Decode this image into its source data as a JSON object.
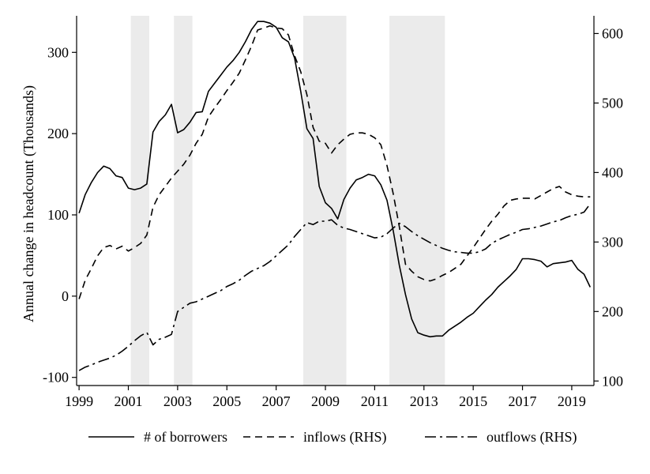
{
  "chart_data": {
    "type": "line",
    "title": "",
    "ylabel": "Annual change in headcount (Thousands)",
    "y2label": "",
    "xlabel": "",
    "xlim": [
      1998.9,
      2019.9
    ],
    "ylim": [
      -110,
      345
    ],
    "y2lim": [
      93.5,
      625.5
    ],
    "x_ticks": [
      1999,
      2001,
      2003,
      2005,
      2007,
      2009,
      2011,
      2013,
      2015,
      2017,
      2019
    ],
    "y_ticks": [
      -100,
      0,
      100,
      200,
      300
    ],
    "y2_ticks": [
      100,
      200,
      300,
      400,
      500,
      600
    ],
    "grid": false,
    "legend_position": "bottom",
    "shaded_periods": [
      [
        2001.1,
        2001.85
      ],
      [
        2002.85,
        2003.6
      ],
      [
        2008.1,
        2009.85
      ],
      [
        2011.6,
        2013.85
      ]
    ],
    "series": [
      {
        "name": "# of borrowers",
        "axis": "left",
        "style": "solid",
        "x": [
          1999,
          1999.25,
          1999.5,
          1999.75,
          2000,
          2000.25,
          2000.5,
          2000.75,
          2001,
          2001.25,
          2001.5,
          2001.75,
          2002,
          2002.25,
          2002.5,
          2002.75,
          2003,
          2003.25,
          2003.5,
          2003.75,
          2004,
          2004.25,
          2004.5,
          2004.75,
          2005,
          2005.25,
          2005.5,
          2005.75,
          2006,
          2006.25,
          2006.5,
          2006.75,
          2007,
          2007.25,
          2007.5,
          2007.75,
          2008,
          2008.25,
          2008.5,
          2008.75,
          2009,
          2009.25,
          2009.5,
          2009.75,
          2010,
          2010.25,
          2010.5,
          2010.75,
          2011,
          2011.25,
          2011.5,
          2011.75,
          2012,
          2012.25,
          2012.5,
          2012.75,
          2013,
          2013.25,
          2013.5,
          2013.75,
          2014,
          2014.25,
          2014.5,
          2014.75,
          2015,
          2015.25,
          2015.5,
          2015.75,
          2016,
          2016.25,
          2016.5,
          2016.75,
          2017,
          2017.25,
          2017.5,
          2017.75,
          2018,
          2018.25,
          2018.5,
          2018.75,
          2019,
          2019.25,
          2019.5,
          2019.75
        ],
        "values": [
          102,
          125,
          140,
          152,
          160,
          157,
          148,
          146,
          133,
          131,
          133,
          138,
          202,
          215,
          223,
          236,
          201,
          205,
          214,
          226,
          227,
          252,
          262,
          272,
          282,
          290,
          300,
          313,
          328,
          338,
          338,
          336,
          331,
          318,
          313,
          293,
          252,
          206,
          194,
          135,
          115,
          108,
          95,
          119,
          133,
          143,
          146,
          150,
          148,
          137,
          118,
          81,
          38,
          2,
          -28,
          -45,
          -48,
          -50,
          -49,
          -49,
          -42,
          -37,
          -32,
          -26,
          -21,
          -13,
          -5,
          2,
          11,
          18,
          25,
          33,
          46,
          46,
          45,
          43,
          36,
          40,
          41,
          42,
          44,
          33,
          27,
          11
        ]
      },
      {
        "name": "inflows (RHS)",
        "axis": "right",
        "style": "dashed",
        "x": [
          1999,
          1999.25,
          1999.5,
          1999.75,
          2000,
          2000.25,
          2000.5,
          2000.75,
          2001,
          2001.25,
          2001.5,
          2001.75,
          2002,
          2002.25,
          2002.5,
          2002.75,
          2003,
          2003.25,
          2003.5,
          2003.75,
          2004,
          2004.25,
          2004.5,
          2004.75,
          2005,
          2005.25,
          2005.5,
          2005.75,
          2006,
          2006.25,
          2006.5,
          2006.75,
          2007,
          2007.25,
          2007.5,
          2007.75,
          2008,
          2008.25,
          2008.5,
          2008.75,
          2009,
          2009.25,
          2009.5,
          2009.75,
          2010,
          2010.25,
          2010.5,
          2010.75,
          2011,
          2011.25,
          2011.5,
          2011.75,
          2012,
          2012.25,
          2012.5,
          2012.75,
          2013,
          2013.25,
          2013.5,
          2013.75,
          2014,
          2014.25,
          2014.5,
          2014.75,
          2015,
          2015.25,
          2015.5,
          2015.75,
          2016,
          2016.25,
          2016.5,
          2016.75,
          2017,
          2017.25,
          2017.5,
          2017.75,
          2018,
          2018.25,
          2018.5,
          2018.75,
          2019,
          2019.25,
          2019.5,
          2019.75
        ],
        "values": [
          218,
          245,
          262,
          280,
          292,
          295,
          290,
          294,
          287,
          292,
          298,
          310,
          350,
          368,
          380,
          392,
          402,
          412,
          425,
          442,
          455,
          480,
          493,
          505,
          518,
          530,
          543,
          562,
          582,
          605,
          608,
          611,
          608,
          607,
          598,
          568,
          545,
          512,
          465,
          445,
          442,
          428,
          440,
          448,
          455,
          457,
          457,
          455,
          450,
          440,
          410,
          370,
          322,
          268,
          258,
          250,
          246,
          244,
          247,
          252,
          256,
          262,
          268,
          280,
          292,
          305,
          318,
          330,
          340,
          352,
          360,
          362,
          363,
          363,
          362,
          367,
          372,
          377,
          380,
          372,
          368,
          366,
          365,
          365
        ]
      },
      {
        "name": "outflows (RHS)",
        "axis": "right",
        "style": "dashdot",
        "x": [
          1999,
          1999.25,
          1999.5,
          1999.75,
          2000,
          2000.25,
          2000.5,
          2000.75,
          2001,
          2001.25,
          2001.5,
          2001.75,
          2002,
          2002.25,
          2002.5,
          2002.75,
          2003,
          2003.25,
          2003.5,
          2003.75,
          2004,
          2004.25,
          2004.5,
          2004.75,
          2005,
          2005.25,
          2005.5,
          2005.75,
          2006,
          2006.25,
          2006.5,
          2006.75,
          2007,
          2007.25,
          2007.5,
          2007.75,
          2008,
          2008.25,
          2008.5,
          2008.75,
          2009,
          2009.25,
          2009.5,
          2009.75,
          2010,
          2010.25,
          2010.5,
          2010.75,
          2011,
          2011.25,
          2011.5,
          2011.75,
          2012,
          2012.25,
          2012.5,
          2012.75,
          2013,
          2013.25,
          2013.5,
          2013.75,
          2014,
          2014.25,
          2014.5,
          2014.75,
          2015,
          2015.25,
          2015.5,
          2015.75,
          2016,
          2016.25,
          2016.5,
          2016.75,
          2017,
          2017.25,
          2017.5,
          2017.75,
          2018,
          2018.25,
          2018.5,
          2018.75,
          2019,
          2019.25,
          2019.5,
          2019.75
        ],
        "values": [
          115,
          120,
          123,
          127,
          130,
          133,
          137,
          143,
          150,
          158,
          165,
          170,
          152,
          160,
          163,
          167,
          200,
          206,
          212,
          214,
          218,
          222,
          226,
          230,
          236,
          240,
          245,
          252,
          258,
          262,
          266,
          272,
          280,
          288,
          296,
          308,
          318,
          328,
          325,
          330,
          330,
          332,
          324,
          320,
          318,
          315,
          312,
          309,
          306,
          307,
          312,
          320,
          327,
          322,
          315,
          309,
          304,
          299,
          295,
          291,
          288,
          286,
          285,
          284,
          284,
          286,
          290,
          298,
          303,
          307,
          311,
          314,
          318,
          319,
          321,
          323,
          326,
          329,
          331,
          335,
          338,
          340,
          343,
          355
        ]
      }
    ]
  }
}
